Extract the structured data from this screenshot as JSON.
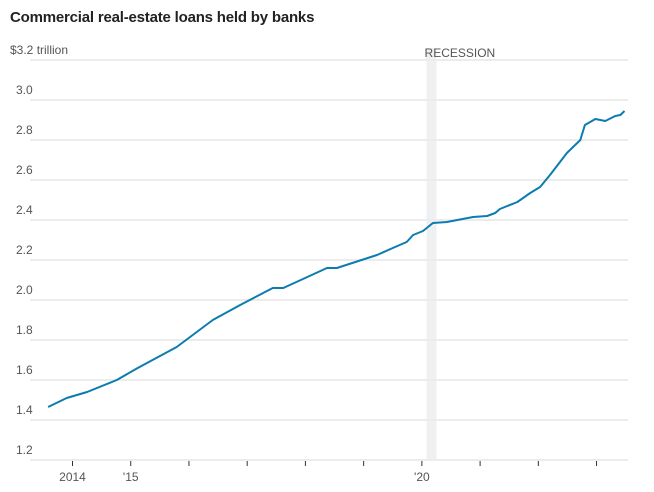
{
  "chart_data": {
    "type": "line",
    "title": "Commercial real-estate loans held by banks",
    "ylabel": "$3.2 trillion",
    "ylim": [
      1.2,
      3.2
    ],
    "yticks": [
      1.2,
      1.4,
      1.6,
      1.8,
      2.0,
      2.2,
      2.4,
      2.6,
      2.8,
      3.0,
      3.2
    ],
    "ytick_labels": [
      "1.2",
      "1.4",
      "1.6",
      "1.8",
      "2.0",
      "2.2",
      "2.4",
      "2.6",
      "2.8",
      "3.0",
      "$3.2 trillion"
    ],
    "xlim": [
      2013.27,
      2023.54
    ],
    "xticks": [
      2014,
      2015,
      2016,
      2017,
      2018,
      2019,
      2020,
      2021,
      2022,
      2023
    ],
    "xtick_labels": [
      "2014",
      "'15",
      "",
      "",
      "",
      "",
      "'20",
      "",
      "",
      ""
    ],
    "grid": true,
    "colors": {
      "line": "#0c7cb0",
      "grid": "#ececec",
      "recession": "#eef0f1",
      "text": "#555555"
    },
    "annotations": [
      {
        "label": "RECESSION",
        "start": 2020.08,
        "end": 2020.25
      }
    ],
    "series": [
      {
        "x": [
          2013.58,
          2013.9,
          2014.25,
          2014.76,
          2015.12,
          2015.79,
          2016.41,
          2016.88,
          2017.44,
          2017.62,
          2018.37,
          2018.54,
          2019.23,
          2019.5,
          2019.74,
          2019.85,
          2020.02,
          2020.19,
          2020.43,
          2020.88,
          2021.12,
          2021.26,
          2021.34,
          2021.64,
          2021.86,
          2022.03,
          2022.2,
          2022.49,
          2022.72,
          2022.8,
          2022.98,
          2023.15,
          2023.32,
          2023.41,
          2023.48
        ],
        "y": [
          1.465,
          1.51,
          1.54,
          1.6,
          1.66,
          1.765,
          1.9,
          1.975,
          2.06,
          2.06,
          2.16,
          2.16,
          2.225,
          2.26,
          2.29,
          2.325,
          2.345,
          2.385,
          2.39,
          2.415,
          2.42,
          2.435,
          2.455,
          2.49,
          2.535,
          2.565,
          2.625,
          2.735,
          2.8,
          2.875,
          2.905,
          2.895,
          2.92,
          2.925,
          2.945
        ]
      }
    ]
  }
}
